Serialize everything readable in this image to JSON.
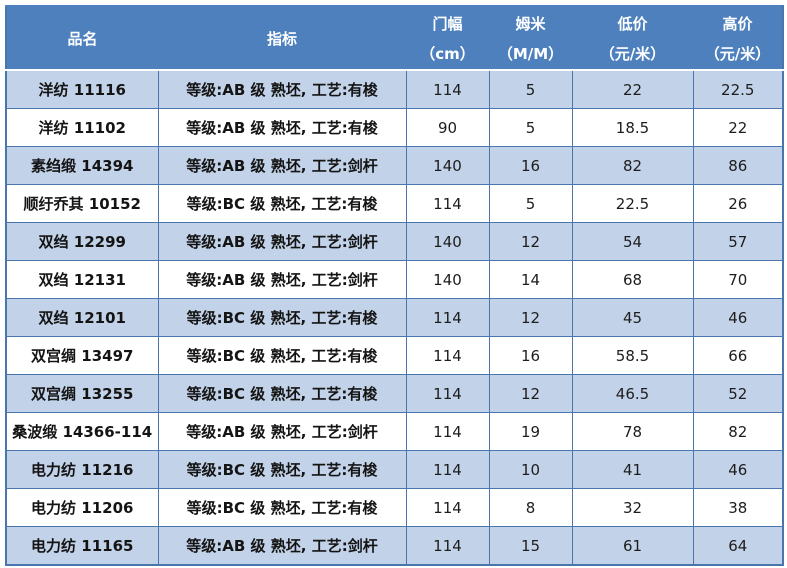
{
  "table": {
    "columns": [
      {
        "title": "品名",
        "unit": ""
      },
      {
        "title": "指标",
        "unit": ""
      },
      {
        "title": "门幅",
        "unit": "（cm）"
      },
      {
        "title": "姆米",
        "unit": "（M/M）"
      },
      {
        "title": "低价",
        "unit": "（元/米）"
      },
      {
        "title": "高价",
        "unit": "（元/米）"
      }
    ],
    "rows": [
      {
        "name": "洋纺 11116",
        "spec": "等级:AB 级  熟坯, 工艺:有梭",
        "width_cm": "114",
        "momme": "5",
        "low": "22",
        "high": "22.5"
      },
      {
        "name": "洋纺 11102",
        "spec": "等级:AB 级  熟坯, 工艺:有梭",
        "width_cm": "90",
        "momme": "5",
        "low": "18.5",
        "high": "22"
      },
      {
        "name": "素绉缎 14394",
        "spec": "等级:AB 级  熟坯, 工艺:剑杆",
        "width_cm": "140",
        "momme": "16",
        "low": "82",
        "high": "86"
      },
      {
        "name": "顺纡乔其 10152",
        "spec": "等级:BC 级  熟坯, 工艺:有梭",
        "width_cm": "114",
        "momme": "5",
        "low": "22.5",
        "high": "26"
      },
      {
        "name": "双绉 12299",
        "spec": "等级:AB 级  熟坯, 工艺:剑杆",
        "width_cm": "140",
        "momme": "12",
        "low": "54",
        "high": "57"
      },
      {
        "name": "双绉 12131",
        "spec": "等级:AB 级  熟坯, 工艺:剑杆",
        "width_cm": "140",
        "momme": "14",
        "low": "68",
        "high": "70"
      },
      {
        "name": "双绉 12101",
        "spec": "等级:BC 级  熟坯, 工艺:有梭",
        "width_cm": "114",
        "momme": "12",
        "low": "45",
        "high": "46"
      },
      {
        "name": "双宫绸 13497",
        "spec": "等级:BC 级  熟坯, 工艺:有梭",
        "width_cm": "114",
        "momme": "16",
        "low": "58.5",
        "high": "66"
      },
      {
        "name": "双宫绸 13255",
        "spec": "等级:BC 级  熟坯, 工艺:有梭",
        "width_cm": "114",
        "momme": "12",
        "low": "46.5",
        "high": "52"
      },
      {
        "name": "桑波缎 14366-114",
        "spec": "等级:AB 级  熟坯, 工艺:剑杆",
        "width_cm": "114",
        "momme": "19",
        "low": "78",
        "high": "82"
      },
      {
        "name": "电力纺 11216",
        "spec": "等级:BC 级  熟坯, 工艺:有梭",
        "width_cm": "114",
        "momme": "10",
        "low": "41",
        "high": "46"
      },
      {
        "name": "电力纺 11206",
        "spec": "等级:BC 级  熟坯, 工艺:有梭",
        "width_cm": "114",
        "momme": "8",
        "low": "32",
        "high": "38"
      },
      {
        "name": "电力纺 11165",
        "spec": "等级:AB 级  熟坯, 工艺:剑杆",
        "width_cm": "114",
        "momme": "15",
        "low": "61",
        "high": "64"
      }
    ]
  },
  "colors": {
    "header_bg": "#4d80bd",
    "band_bg": "#c2d2e8",
    "border": "#4a76ad",
    "header_text": "#ffffff",
    "body_text": "#1d1d1d"
  }
}
